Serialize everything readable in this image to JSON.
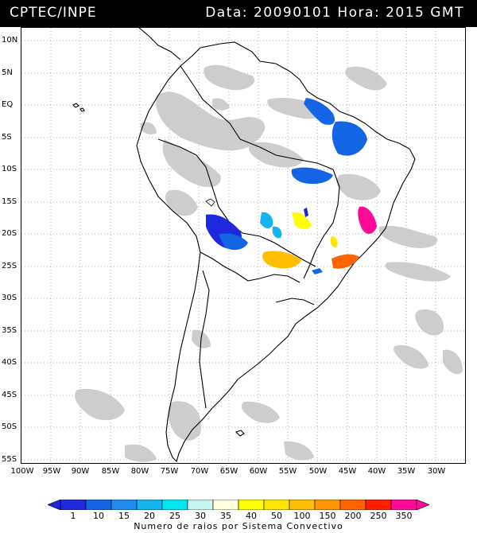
{
  "header": {
    "source": "CPTEC/INPE",
    "datetime": "Data: 20090101 Hora: 2015 GMT"
  },
  "map": {
    "lat_labels": [
      "10N",
      "5N",
      "EQ",
      "5S",
      "10S",
      "15S",
      "20S",
      "25S",
      "30S",
      "35S",
      "40S",
      "45S",
      "50S",
      "55S"
    ],
    "lon_labels": [
      "100W",
      "95W",
      "90W",
      "85W",
      "80W",
      "75W",
      "70W",
      "65W",
      "60W",
      "55W",
      "50W",
      "45W",
      "40W",
      "35W",
      "30W"
    ],
    "cloud_color": "#c8c8c8",
    "land_outline_color": "#000000"
  },
  "legend": {
    "ticks": [
      "1",
      "10",
      "15",
      "20",
      "25",
      "30",
      "35",
      "40",
      "50",
      "100",
      "150",
      "200",
      "250",
      "350"
    ],
    "colors": [
      "#1e28dc",
      "#1464e6",
      "#1e8cf0",
      "#14b4f0",
      "#00e6f0",
      "#c8f5f0",
      "#ffffdc",
      "#ffff00",
      "#ffe600",
      "#ffbe00",
      "#ff9600",
      "#ff6400",
      "#ff1e00",
      "#ff0a96"
    ],
    "caption": "Numero de raios por Sistema Convectivo"
  }
}
